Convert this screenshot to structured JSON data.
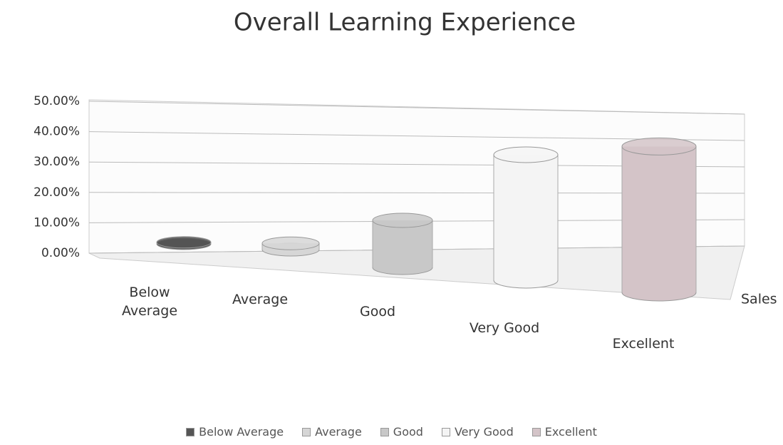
{
  "chart_data": {
    "type": "bar",
    "title": "Overall Learning Experience",
    "categories": [
      "Below Average",
      "Average",
      "Good",
      "Very Good",
      "Excellent"
    ],
    "series": [
      {
        "name": "Sales",
        "values": [
          0.5,
          2,
          15,
          40,
          46.5
        ]
      }
    ],
    "colors": [
      "#555555",
      "#d6d6d6",
      "#c8c8c8",
      "#f4f4f4",
      "#d4c4c8"
    ],
    "ylim": [
      0,
      50
    ],
    "yticks": [
      {
        "value": 0,
        "label": "0.00%"
      },
      {
        "value": 10,
        "label": "10.00%"
      },
      {
        "value": 20,
        "label": "20.00%"
      },
      {
        "value": 30,
        "label": "30.00%"
      },
      {
        "value": 40,
        "label": "40.00%"
      },
      {
        "value": 50,
        "label": "50.00%"
      }
    ],
    "grid": true,
    "legend": "bottom"
  }
}
